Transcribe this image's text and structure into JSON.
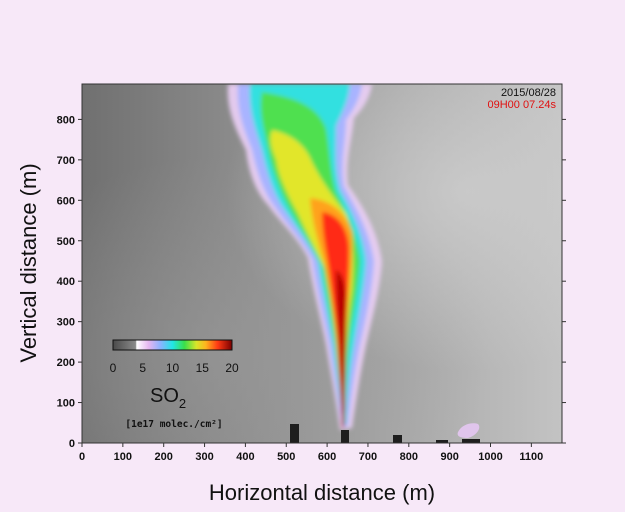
{
  "image": {
    "date": "2015/08/28",
    "time": "09H00 07.24s",
    "x_axis_title": "Horizontal distance (m)",
    "y_axis_title": "Vertical distance (m)",
    "x_ticks": [
      "0",
      "100",
      "200",
      "300",
      "400",
      "500",
      "600",
      "700",
      "800",
      "900",
      "1000",
      "1100"
    ],
    "y_ticks": [
      "0",
      "100",
      "200",
      "300",
      "400",
      "500",
      "600",
      "700",
      "800"
    ],
    "colorbar": {
      "ticks": [
        "0",
        "5",
        "10",
        "15",
        "20"
      ],
      "species": "SO",
      "subscript": "2",
      "units": "[1e17 molec./cm²]",
      "colors": [
        "#ffffff",
        "#f0c8f0",
        "#c4a0ff",
        "#6fb7ff",
        "#21e6e6",
        "#2ae06a",
        "#c8e62a",
        "#ffd21e",
        "#ff7d1e",
        "#ff2a14",
        "#c80000",
        "#8a0000"
      ]
    },
    "background_colors": {
      "frame": "#f7e8f8",
      "sky_dark": "#6f6f6f",
      "sky_light": "#c8c8c8"
    },
    "scene": "grayscale camera view of a volcanic SO2 plume rising from a vent, colorized by SO2 column density"
  }
}
